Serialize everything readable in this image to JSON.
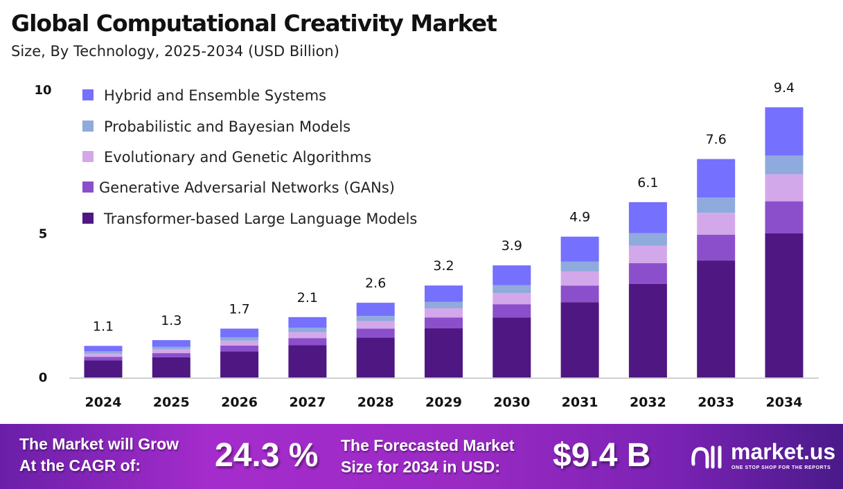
{
  "chart_data": {
    "type": "bar",
    "stacked": true,
    "title": "Global Computational Creativity Market",
    "subtitle": "Size, By Technology, 2025-2034 (USD Billion)",
    "categories": [
      "2024",
      "2025",
      "2026",
      "2027",
      "2028",
      "2029",
      "2030",
      "2031",
      "2032",
      "2033",
      "2034"
    ],
    "totals": [
      "1.1",
      "1.3",
      "1.7",
      "2.1",
      "2.6",
      "3.2",
      "3.9",
      "4.9",
      "6.1",
      "7.6",
      "9.4"
    ],
    "yticks": [
      "0",
      "5",
      "10"
    ],
    "ylim": [
      0,
      10
    ],
    "grid": false,
    "legend_position": "top-left",
    "series": [
      {
        "name": "Transformer-based Large Language Models",
        "color": "#4e1782",
        "values": [
          0.59,
          0.7,
          0.91,
          1.12,
          1.39,
          1.71,
          2.09,
          2.62,
          3.26,
          4.07,
          5.02
        ]
      },
      {
        "name": "Generative Adversarial Networks (GANs)",
        "color": "#8c4fcb",
        "values": [
          0.13,
          0.15,
          0.2,
          0.25,
          0.31,
          0.38,
          0.46,
          0.58,
          0.72,
          0.9,
          1.11
        ]
      },
      {
        "name": "Evolutionary and Genetic Algorithms",
        "color": "#d3a8ea",
        "values": [
          0.11,
          0.13,
          0.17,
          0.21,
          0.26,
          0.32,
          0.39,
          0.49,
          0.61,
          0.76,
          0.94
        ]
      },
      {
        "name": "Probabilistic and Bayesian Models",
        "color": "#8faadc",
        "values": [
          0.08,
          0.09,
          0.12,
          0.15,
          0.18,
          0.22,
          0.27,
          0.34,
          0.43,
          0.53,
          0.65
        ]
      },
      {
        "name": "Hybrid and Ensemble Systems",
        "color": "#7570fd",
        "values": [
          0.19,
          0.23,
          0.3,
          0.37,
          0.46,
          0.57,
          0.69,
          0.87,
          1.08,
          1.34,
          1.68
        ]
      }
    ]
  },
  "footer": {
    "cagr_label_1": "The Market will Grow",
    "cagr_label_2": "At the CAGR of:",
    "cagr_value": "24.3 %",
    "forecast_label_1": "The Forecasted Market",
    "forecast_label_2": "Size for 2034 in USD:",
    "forecast_value": "$9.4 B",
    "logo": "market.us",
    "logo_tagline": "ONE STOP SHOP FOR THE REPORTS"
  }
}
